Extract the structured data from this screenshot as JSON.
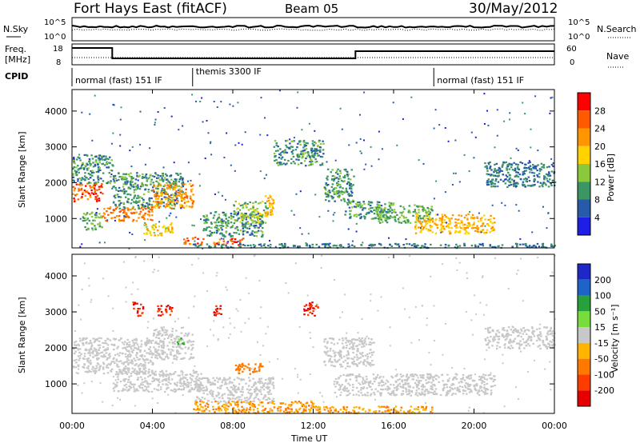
{
  "header": {
    "station": "Fort Hays East (fitACF)",
    "beam": "Beam 05",
    "date": "30/May/2012"
  },
  "noise_panel": {
    "left_label": "N.Sky",
    "right_label": "N.Search",
    "left_ticks": [
      "10^5",
      "10^0"
    ],
    "right_ticks": [
      "10^5",
      "10^0"
    ]
  },
  "freq_panel": {
    "left_label_1": "Freq.",
    "left_label_2": "[MHz]",
    "right_label": "Nave",
    "left_ticks": [
      "18",
      "8"
    ],
    "right_ticks": [
      "60",
      "0"
    ],
    "freq_steps": [
      {
        "t": 0.0,
        "f": 17
      },
      {
        "t": 2.0,
        "f": 17
      },
      {
        "t": 2.0,
        "f": 10.5
      },
      {
        "t": 14.1,
        "f": 10.5
      },
      {
        "t": 14.1,
        "f": 15
      },
      {
        "t": 24.0,
        "f": 15
      }
    ]
  },
  "cpid": {
    "label": "CPID",
    "segments": [
      {
        "name": "normal (fast) 151 IF",
        "start": 0.0,
        "end": 6.0
      },
      {
        "name": "themis 3300 IF",
        "start": 6.0,
        "end": 18.0
      },
      {
        "name": "normal (fast) 151 IF",
        "start": 18.0,
        "end": 24.0
      }
    ]
  },
  "panels": {
    "power": {
      "ylabel": "Slant Range [km]",
      "colorbar_label": "Power [dB]",
      "colorbar_ticks": [
        "28",
        "24",
        "20",
        "16",
        "12",
        "8",
        "4"
      ],
      "colorbar_colors": [
        "#ff0000",
        "#ff5a00",
        "#ff9600",
        "#ffd200",
        "#8cc83c",
        "#3c9664",
        "#285aaa",
        "#1e1ee6"
      ]
    },
    "velocity": {
      "ylabel": "Slant Range [km]",
      "colorbar_label": "Velocity [m s⁻¹]",
      "colorbar_ticks": [
        "200",
        "100",
        "50",
        "15",
        "-15",
        "-50",
        "-100",
        "-200"
      ],
      "colorbar_colors": [
        "#1e28c8",
        "#1e64c8",
        "#28a03c",
        "#78dc3c",
        "#c8c8c8",
        "#ffb400",
        "#ff7800",
        "#ff3c00",
        "#e60000"
      ]
    }
  },
  "x_axis": {
    "label": "Time UT",
    "ticks": [
      "00:00",
      "04:00",
      "08:00",
      "12:00",
      "16:00",
      "20:00",
      "00:00"
    ]
  },
  "chart_data": {
    "type": "heatmap",
    "title": "Fort Hays East (fitACF) Beam 05 30/May/2012",
    "xlabel": "Time UT",
    "ylabel": "Slant Range [km]",
    "xlim_hours": [
      0,
      24
    ],
    "ylim_km": [
      180,
      4600
    ],
    "y_ticks_km": [
      1000,
      2000,
      3000,
      4000
    ],
    "power_bands": [
      {
        "t0": 0.0,
        "t1": 1.5,
        "r0": 1500,
        "r1": 2000,
        "level": 26
      },
      {
        "t0": 0.0,
        "t1": 2.0,
        "r0": 2000,
        "r1": 2800,
        "level": 10
      },
      {
        "t0": 0.5,
        "t1": 1.5,
        "r0": 700,
        "r1": 1200,
        "level": 12
      },
      {
        "t0": 1.5,
        "t1": 4.0,
        "r0": 950,
        "r1": 1350,
        "level": 24
      },
      {
        "t0": 2.0,
        "t1": 5.5,
        "r0": 1300,
        "r1": 2300,
        "level": 10
      },
      {
        "t0": 4.0,
        "t1": 6.0,
        "r0": 1300,
        "r1": 2000,
        "level": 22
      },
      {
        "t0": 3.5,
        "t1": 5.0,
        "r0": 550,
        "r1": 900,
        "level": 18
      },
      {
        "t0": 5.5,
        "t1": 6.5,
        "r0": 300,
        "r1": 500,
        "level": 26
      },
      {
        "t0": 6.5,
        "t1": 9.5,
        "r0": 500,
        "r1": 1200,
        "level": 10
      },
      {
        "t0": 7.0,
        "t1": 8.5,
        "r0": 280,
        "r1": 480,
        "level": 26
      },
      {
        "t0": 8.0,
        "t1": 9.7,
        "r0": 900,
        "r1": 1500,
        "level": 14
      },
      {
        "t0": 9.5,
        "t1": 10.0,
        "r0": 1100,
        "r1": 1700,
        "level": 20
      },
      {
        "t0": 10.0,
        "t1": 12.5,
        "r0": 2500,
        "r1": 3200,
        "level": 10
      },
      {
        "t0": 12.5,
        "t1": 14.0,
        "r0": 1500,
        "r1": 2400,
        "level": 10
      },
      {
        "t0": 13.5,
        "t1": 16.0,
        "r0": 1000,
        "r1": 1500,
        "level": 10
      },
      {
        "t0": 15.0,
        "t1": 18.0,
        "r0": 900,
        "r1": 1400,
        "level": 12
      },
      {
        "t0": 17.0,
        "t1": 21.0,
        "r0": 600,
        "r1": 1150,
        "level": 20
      },
      {
        "t0": 20.5,
        "t1": 24.0,
        "r0": 1900,
        "r1": 2600,
        "level": 8
      },
      {
        "t0": 6.0,
        "t1": 24.0,
        "r0": 200,
        "r1": 320,
        "level": 8
      }
    ],
    "velocity_bands": [
      {
        "t0": 0.0,
        "t1": 4.0,
        "r0": 1300,
        "r1": 2300,
        "velocity": 0
      },
      {
        "t0": 2.0,
        "t1": 6.5,
        "r0": 800,
        "r1": 1400,
        "velocity": 0
      },
      {
        "t0": 4.0,
        "t1": 6.0,
        "r0": 1700,
        "r1": 2600,
        "velocity": 0
      },
      {
        "t0": 6.0,
        "t1": 10.0,
        "r0": 500,
        "r1": 1200,
        "velocity": 0
      },
      {
        "t0": 8.0,
        "t1": 9.5,
        "r0": 1300,
        "r1": 1600,
        "velocity": -60
      },
      {
        "t0": 3.0,
        "t1": 3.5,
        "r0": 2900,
        "r1": 3300,
        "velocity": -200
      },
      {
        "t0": 4.2,
        "t1": 5.0,
        "r0": 2900,
        "r1": 3200,
        "velocity": -200
      },
      {
        "t0": 7.0,
        "t1": 7.5,
        "r0": 2900,
        "r1": 3200,
        "velocity": -200
      },
      {
        "t0": 11.5,
        "t1": 12.2,
        "r0": 2900,
        "r1": 3300,
        "velocity": -200
      },
      {
        "t0": 5.2,
        "t1": 5.6,
        "r0": 2100,
        "r1": 2300,
        "velocity": 50
      },
      {
        "t0": 6.0,
        "t1": 12.0,
        "r0": 200,
        "r1": 550,
        "velocity": -50
      },
      {
        "t0": 12.0,
        "t1": 18.0,
        "r0": 200,
        "r1": 400,
        "velocity": -50
      },
      {
        "t0": 13.0,
        "t1": 21.0,
        "r0": 700,
        "r1": 1300,
        "velocity": 0
      },
      {
        "t0": 12.5,
        "t1": 15.0,
        "r0": 1500,
        "r1": 2300,
        "velocity": 0
      },
      {
        "t0": 20.5,
        "t1": 24.0,
        "r0": 2000,
        "r1": 2600,
        "velocity": 0
      }
    ]
  }
}
